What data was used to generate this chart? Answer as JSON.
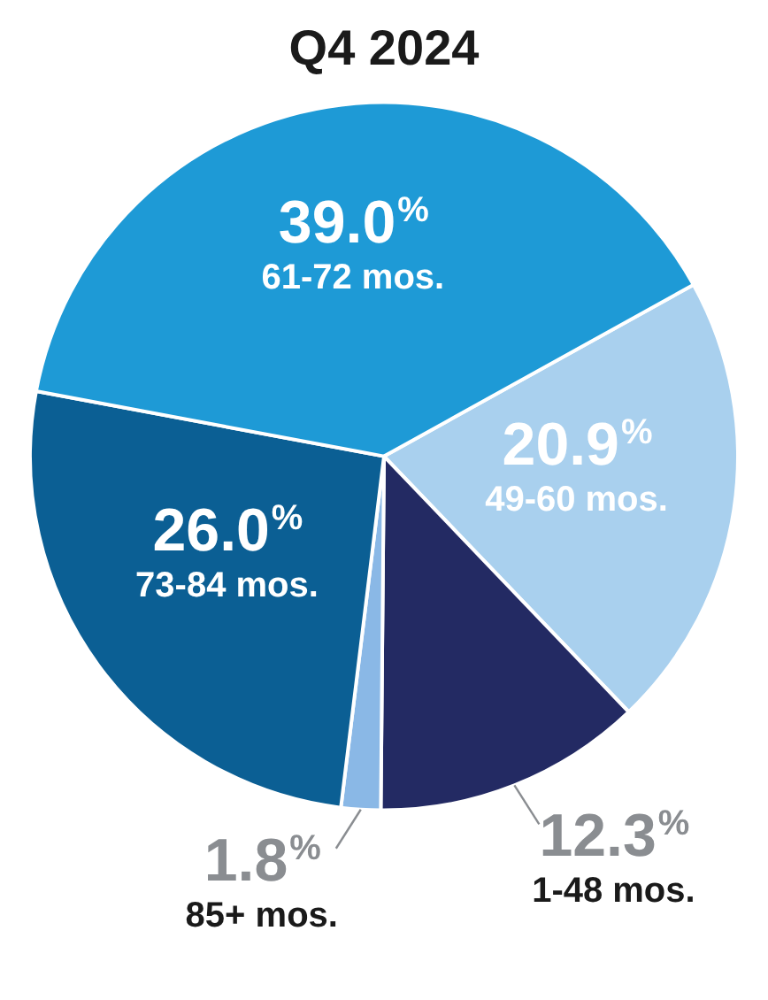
{
  "chart_data": {
    "type": "pie",
    "title": "Q4 2024",
    "categories": [
      "49-60 mos.",
      "1-48 mos.",
      "85+ mos.",
      "73-84 mos.",
      "61-72 mos."
    ],
    "values": [
      20.9,
      12.3,
      1.8,
      26.0,
      39.0
    ],
    "colors": [
      "#a9d0ee",
      "#232a63",
      "#8ab8e6",
      "#0b5f94",
      "#1e9ad6"
    ],
    "value_labels": [
      "20.9%",
      "12.3%",
      "1.8%",
      "26.0%",
      "39.0%"
    ],
    "legend": false
  }
}
